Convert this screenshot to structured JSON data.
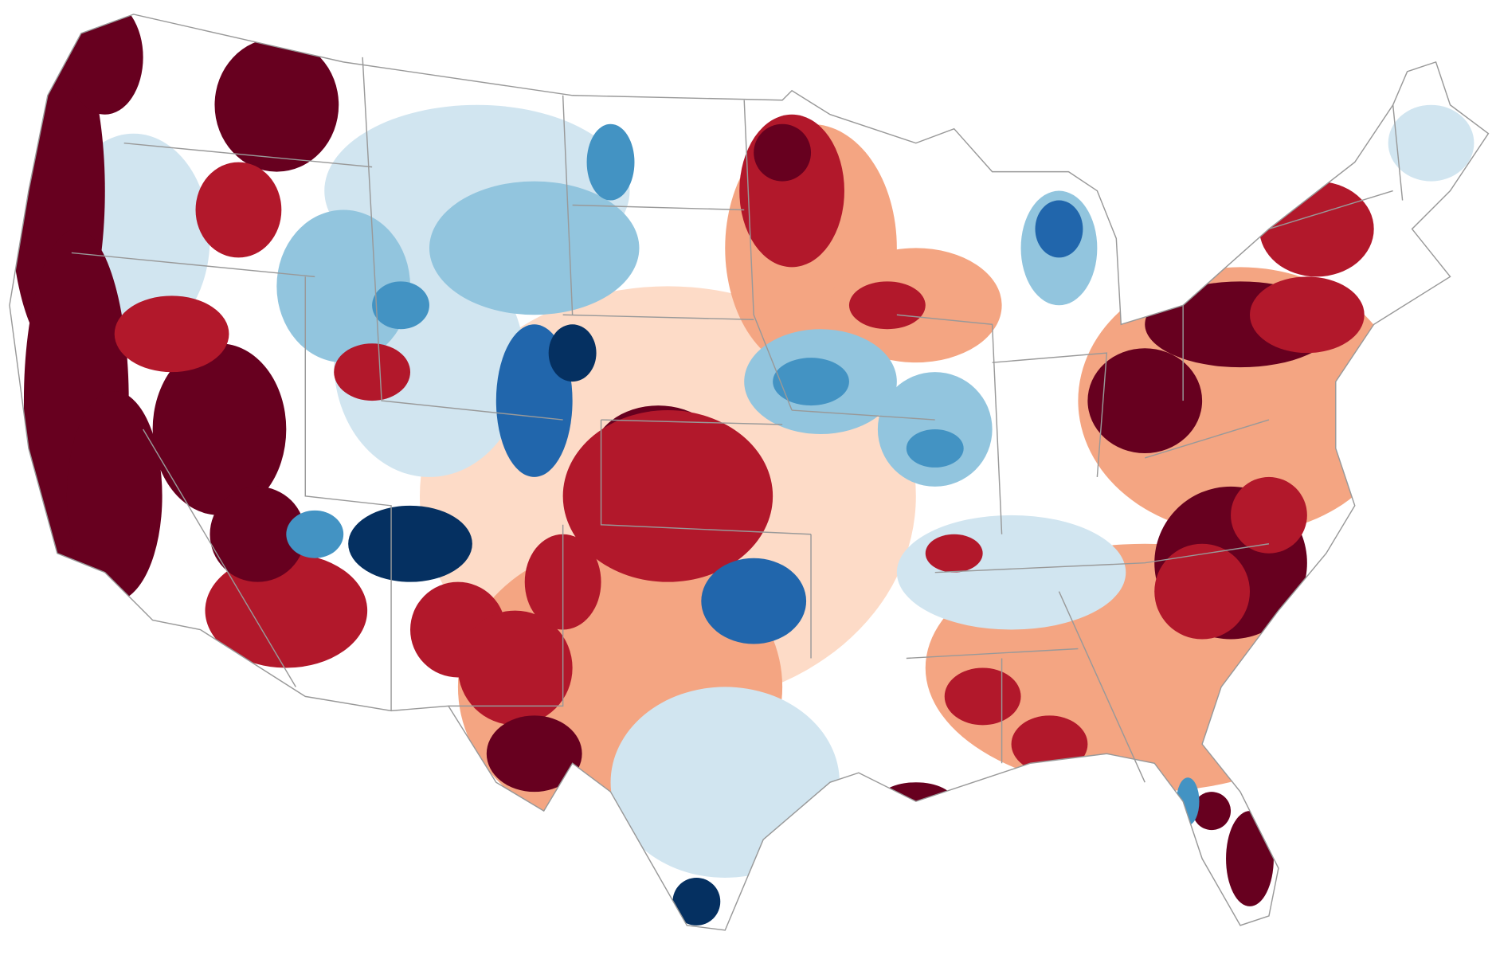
{
  "map": {
    "subject": "contiguous-united-states",
    "palette": {
      "strong_positive": "#67001f",
      "positive": "#b2182b",
      "moderate_positive": "#d6604d",
      "weak_positive": "#f4a582",
      "slight_positive": "#fddbc7",
      "neutral": "#ffffff",
      "slight_negative": "#d1e5f0",
      "weak_negative": "#92c5de",
      "moderate_negative": "#4393c3",
      "negative": "#2166ac",
      "strong_negative": "#053061"
    },
    "border_color": "#999999",
    "background": "#ffffff"
  }
}
